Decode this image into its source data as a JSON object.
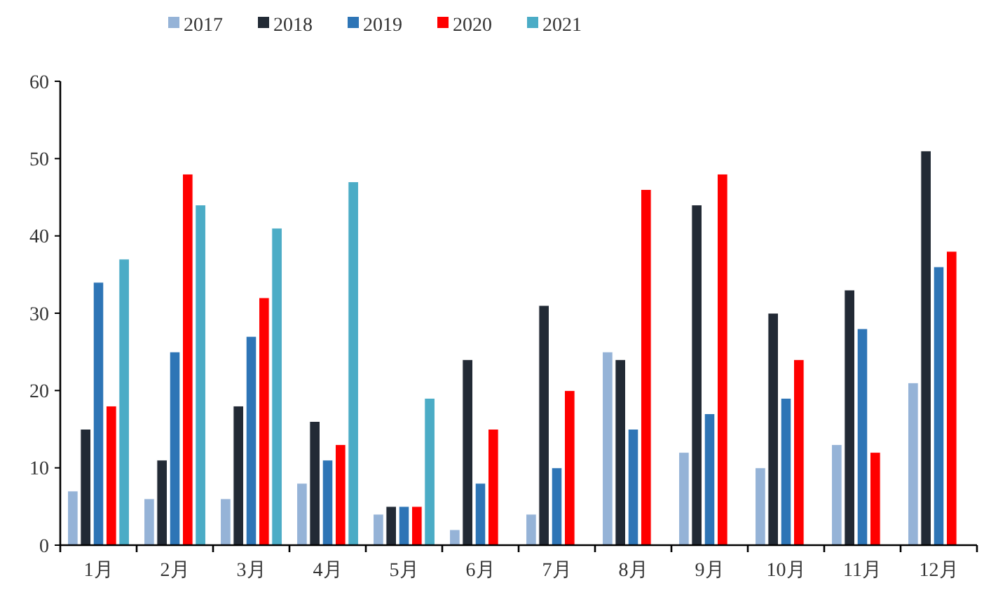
{
  "chart_data": {
    "type": "bar",
    "categories": [
      "1月",
      "2月",
      "3月",
      "4月",
      "5月",
      "6月",
      "7月",
      "8月",
      "9月",
      "10月",
      "11月",
      "12月"
    ],
    "series": [
      {
        "name": "2017",
        "color": "#95b3d7",
        "values": [
          7,
          6,
          6,
          8,
          4,
          2,
          4,
          25,
          12,
          10,
          13,
          21
        ]
      },
      {
        "name": "2018",
        "color": "#222a35",
        "values": [
          15,
          11,
          18,
          16,
          5,
          24,
          31,
          24,
          44,
          30,
          33,
          51
        ]
      },
      {
        "name": "2019",
        "color": "#2e75b6",
        "values": [
          34,
          25,
          27,
          11,
          5,
          8,
          10,
          15,
          17,
          19,
          28,
          36
        ]
      },
      {
        "name": "2020",
        "color": "#ff0000",
        "values": [
          18,
          48,
          32,
          13,
          5,
          15,
          20,
          46,
          48,
          24,
          12,
          38
        ]
      },
      {
        "name": "2021",
        "color": "#4bacc6",
        "values": [
          37,
          44,
          41,
          47,
          19,
          null,
          null,
          null,
          null,
          null,
          null,
          null
        ]
      }
    ],
    "ylim": [
      0,
      60
    ],
    "yticks": [
      0,
      10,
      20,
      30,
      40,
      50,
      60
    ],
    "grid": false,
    "legend": "top"
  }
}
